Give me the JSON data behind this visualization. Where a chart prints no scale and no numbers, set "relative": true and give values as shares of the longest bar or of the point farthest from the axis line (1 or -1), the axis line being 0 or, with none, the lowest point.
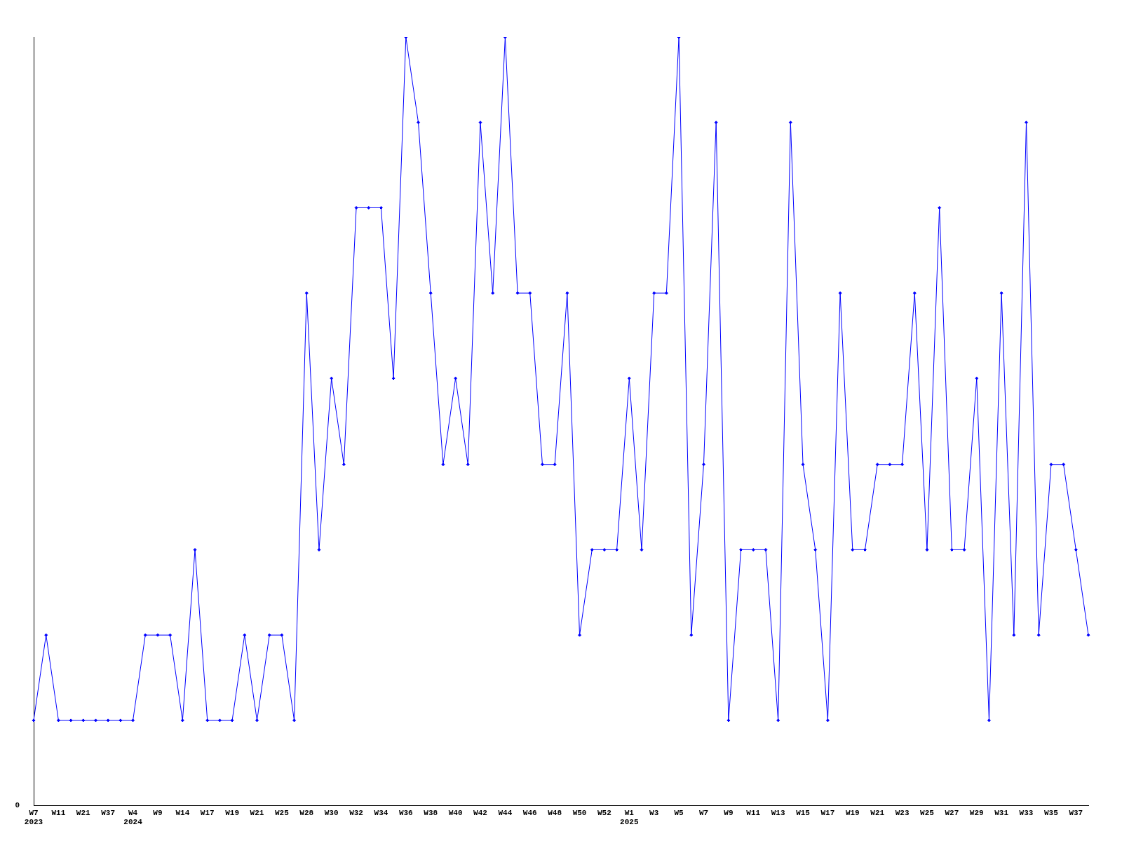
{
  "chart_data": {
    "type": "line",
    "relative": true,
    "annotations": [
      "0"
    ],
    "marker": "diamond",
    "line_style": "solid",
    "grid": false,
    "legend": false,
    "categories": [
      "W7\n2023",
      null,
      "W11",
      null,
      "W21",
      null,
      "W37",
      null,
      "W4\n2024",
      null,
      "W9",
      null,
      "W14",
      null,
      "W17",
      null,
      "W19",
      null,
      "W21",
      null,
      "W25",
      null,
      "W28",
      null,
      "W30",
      null,
      "W32",
      null,
      "W34",
      null,
      "W36",
      null,
      "W38",
      null,
      "W40",
      null,
      "W42",
      null,
      "W44",
      null,
      "W46",
      null,
      "W48",
      null,
      "W50",
      null,
      "W52",
      null,
      "W1\n2025",
      null,
      "W3",
      null,
      "W5",
      null,
      "W7",
      null,
      "W9",
      null,
      "W11",
      null,
      "W13",
      null,
      "W15",
      null,
      "W17",
      null,
      "W19",
      null,
      "W21",
      null,
      "W23",
      null,
      "W25",
      null,
      "W27",
      null,
      "W29",
      null,
      "W31",
      null,
      "W33",
      null,
      "W35",
      null,
      "W37",
      null
    ],
    "series": [
      {
        "color": "#0000ff",
        "values": [
          0.111,
          0.222,
          0.111,
          0.111,
          0.111,
          0.111,
          0.111,
          0.111,
          0.111,
          0.222,
          0.222,
          0.222,
          0.111,
          0.333,
          0.111,
          0.111,
          0.111,
          0.222,
          0.111,
          0.222,
          0.222,
          0.111,
          0.667,
          0.333,
          0.556,
          0.444,
          0.778,
          0.778,
          0.778,
          0.556,
          1,
          0.889,
          0.667,
          0.444,
          0.556,
          0.444,
          0.889,
          0.667,
          1,
          0.667,
          0.667,
          0.444,
          0.444,
          0.667,
          0.222,
          0.333,
          0.333,
          0.333,
          0.556,
          0.333,
          0.667,
          0.667,
          1,
          0.222,
          0.444,
          0.889,
          0.111,
          0.333,
          0.333,
          0.333,
          0.111,
          0.889,
          0.444,
          0.333,
          0.111,
          0.667,
          0.333,
          0.333,
          0.444,
          0.444,
          0.444,
          0.667,
          0.333,
          0.778,
          0.333,
          0.333,
          0.556,
          0.111,
          0.667,
          0.222,
          0.889,
          0.222,
          0.444,
          0.444,
          0.333,
          0.222
        ]
      }
    ]
  }
}
